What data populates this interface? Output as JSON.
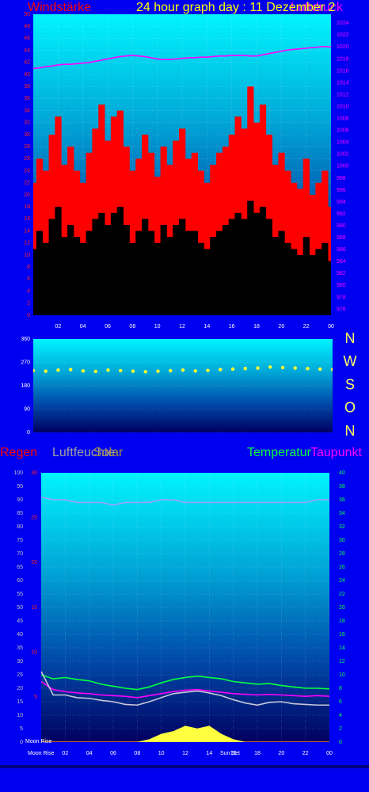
{
  "chart_data": [
    {
      "type": "bar",
      "title": "24 hour graph day : 11 Dezember 2",
      "grid": true,
      "x": [
        0,
        0.5,
        1,
        1.5,
        2,
        2.5,
        3,
        3.5,
        4,
        4.5,
        5,
        5.5,
        6,
        6.5,
        7,
        7.5,
        8,
        8.5,
        9,
        9.5,
        10,
        10.5,
        11,
        11.5,
        12,
        12.5,
        13,
        13.5,
        14,
        14.5,
        15,
        15.5,
        16,
        16.5,
        17,
        17.5,
        18,
        18.5,
        19,
        19.5,
        20,
        20.5,
        21,
        21.5,
        22,
        22.5,
        23,
        23.5,
        24
      ],
      "xlim": [
        0,
        24
      ],
      "xticks": [
        {
          "value": 2,
          "label": "02"
        },
        {
          "value": 4,
          "label": "04"
        },
        {
          "value": 6,
          "label": "06"
        },
        {
          "value": 8,
          "label": "08"
        },
        10,
        12,
        14,
        16,
        18,
        20,
        22,
        {
          "value": 24,
          "label": "00"
        }
      ],
      "ylim": [
        0,
        50
      ],
      "yticks": [
        0,
        2,
        4,
        6,
        8,
        10,
        12,
        14,
        16,
        18,
        20,
        22,
        24,
        26,
        28,
        30,
        32,
        34,
        36,
        38,
        40,
        42,
        44,
        46,
        48,
        50
      ],
      "y2lim": [
        975,
        1025.5
      ],
      "y2ticks": [
        976,
        978,
        980,
        982,
        984,
        986,
        988,
        990,
        992,
        994,
        996,
        998,
        1000,
        1002,
        1004,
        1006,
        1008,
        1010,
        1012,
        1014,
        1016,
        1018,
        1020,
        1022,
        1024
      ],
      "series": [
        {
          "name": "Windstärke",
          "color": "#ff0000",
          "kind": "bar",
          "values": [
            22,
            26,
            24,
            30,
            33,
            25,
            28,
            24,
            22,
            27,
            31,
            35,
            29,
            33,
            34,
            28,
            24,
            26,
            30,
            27,
            23,
            28,
            25,
            29,
            31,
            26,
            27,
            24,
            22,
            25,
            27,
            28,
            30,
            33,
            31,
            38,
            32,
            35,
            30,
            25,
            27,
            24,
            22,
            21,
            26,
            20,
            22,
            24,
            18
          ]
        },
        {
          "color": "#000000",
          "kind": "bar",
          "values": [
            11,
            14,
            12,
            16,
            18,
            13,
            15,
            13,
            12,
            14,
            16,
            17,
            15,
            17,
            18,
            15,
            12,
            14,
            16,
            14,
            12,
            15,
            13,
            15,
            16,
            14,
            14,
            12,
            11,
            13,
            14,
            15,
            16,
            17,
            16,
            19,
            17,
            18,
            16,
            13,
            14,
            12,
            11,
            10,
            13,
            10,
            11,
            12,
            9
          ]
        },
        {
          "name": "Luftdruck",
          "color": "#ff00ff",
          "kind": "line",
          "axis": "y2",
          "values": [
            1016.4,
            1016.5,
            1016.7,
            1016.8,
            1017.0,
            1017.1,
            1017.1,
            1017.2,
            1017.3,
            1017.4,
            1017.6,
            1017.8,
            1018.0,
            1018.2,
            1018.4,
            1018.5,
            1018.6,
            1018.5,
            1018.4,
            1018.2,
            1018.0,
            1017.9,
            1017.9,
            1018.0,
            1018.1,
            1018.2,
            1018.2,
            1018.3,
            1018.3,
            1018.4,
            1018.5,
            1018.5,
            1018.6,
            1018.6,
            1018.6,
            1018.5,
            1018.5,
            1018.7,
            1018.9,
            1019.1,
            1019.3,
            1019.5,
            1019.6,
            1019.7,
            1019.8,
            1019.9,
            1020.0,
            1020.1,
            1020.0
          ]
        }
      ]
    },
    {
      "type": "scatter",
      "grid": true,
      "x": [
        0,
        1,
        2,
        3,
        4,
        5,
        6,
        7,
        8,
        9,
        10,
        11,
        12,
        13,
        14,
        15,
        16,
        17,
        18,
        19,
        20,
        21,
        22,
        23,
        24
      ],
      "xlim": [
        0,
        24
      ],
      "ylim": [
        0,
        360
      ],
      "yticks": [
        0,
        90,
        180,
        270,
        360
      ],
      "compass": [
        "N",
        "W",
        "S",
        "O",
        "N"
      ],
      "series": [
        {
          "color": "#ffff30",
          "values": [
            238,
            236,
            240,
            242,
            237,
            235,
            240,
            238,
            236,
            234,
            236,
            238,
            240,
            237,
            239,
            242,
            244,
            246,
            248,
            252,
            250,
            248,
            246,
            244,
            242
          ]
        }
      ]
    },
    {
      "type": "line",
      "grid": true,
      "x": [
        0,
        1,
        2,
        3,
        4,
        5,
        6,
        7,
        8,
        9,
        10,
        11,
        12,
        13,
        14,
        15,
        16,
        17,
        18,
        19,
        20,
        21,
        22,
        23,
        24
      ],
      "xlim": [
        0,
        24
      ],
      "xticks": [
        {
          "value": 2,
          "label": "02"
        },
        {
          "value": 4,
          "label": "04"
        },
        {
          "value": 6,
          "label": "06"
        },
        {
          "value": 8,
          "label": "08"
        },
        10,
        12,
        14,
        16,
        18,
        20,
        22,
        {
          "value": 24,
          "label": "00"
        }
      ],
      "ylim": [
        0,
        100
      ],
      "yticks": [
        0,
        5,
        10,
        15,
        20,
        25,
        30,
        35,
        40,
        45,
        50,
        55,
        60,
        65,
        70,
        75,
        80,
        85,
        90,
        95,
        100
      ],
      "y2lim": [
        0,
        40
      ],
      "y2ticks": [
        0,
        2,
        4,
        6,
        8,
        10,
        12,
        14,
        16,
        18,
        20,
        22,
        24,
        26,
        28,
        30,
        32,
        34,
        36,
        38,
        40
      ],
      "y3lim": [
        0,
        30
      ],
      "y3ticks": [
        5,
        10,
        15,
        20,
        25,
        30
      ],
      "annotations": [
        "Moon Rise",
        "Moon Rise",
        "Sun Set"
      ],
      "series": [
        {
          "name": "Regen",
          "color": "#ff0000",
          "kind": "line",
          "axis": "y3",
          "values": [
            0,
            0,
            0,
            0,
            0,
            0,
            0,
            0,
            0,
            0,
            0,
            0,
            0,
            0,
            0,
            0,
            0,
            0,
            0,
            0,
            0,
            0,
            0,
            0,
            0
          ]
        },
        {
          "name": "Luftfeuchte",
          "color": "#a0a0ff",
          "label_color": "#a0a0a0",
          "kind": "line",
          "values": [
            91,
            90,
            90,
            89,
            89,
            89,
            88,
            89,
            89,
            89,
            90,
            90,
            89,
            89,
            89,
            89,
            89,
            89,
            89,
            89,
            89,
            89,
            89,
            90,
            90
          ]
        },
        {
          "name": "Solar",
          "color": "#ffff40",
          "label_color": "#a08c40",
          "kind": "area",
          "values": [
            0,
            0,
            0,
            0,
            0,
            0,
            0,
            0,
            0,
            1,
            3,
            4,
            6,
            5,
            6,
            3,
            1,
            0,
            0,
            0,
            0,
            0,
            0,
            0,
            0
          ]
        },
        {
          "name": "Temperatur",
          "color": "#00ff40",
          "kind": "line",
          "axis": "y2",
          "values": [
            10.0,
            9.4,
            9.6,
            9.3,
            9.1,
            8.6,
            8.3,
            8.0,
            7.8,
            8.2,
            8.8,
            9.3,
            9.6,
            9.8,
            9.6,
            9.4,
            9.0,
            8.8,
            8.6,
            8.7,
            8.4,
            8.2,
            8.0,
            8.0,
            7.9
          ]
        },
        {
          "name": "Taupunkt",
          "color": "#ff00ff",
          "kind": "line",
          "axis": "y2",
          "values": [
            9.0,
            7.8,
            7.5,
            7.3,
            7.2,
            7.0,
            6.9,
            6.8,
            6.6,
            6.9,
            7.2,
            7.5,
            7.7,
            7.8,
            7.6,
            7.4,
            7.2,
            7.1,
            7.0,
            7.1,
            7.0,
            6.9,
            6.8,
            6.9,
            6.8
          ]
        },
        {
          "color": "#c8c8d8",
          "kind": "line",
          "axis": "y2",
          "values": [
            10.5,
            7.0,
            7.0,
            6.6,
            6.5,
            6.2,
            6.0,
            5.6,
            5.5,
            6.0,
            6.6,
            7.2,
            7.4,
            7.6,
            7.3,
            6.9,
            6.3,
            5.8,
            5.5,
            5.9,
            6.0,
            5.7,
            5.6,
            5.5,
            5.5
          ]
        }
      ]
    }
  ]
}
